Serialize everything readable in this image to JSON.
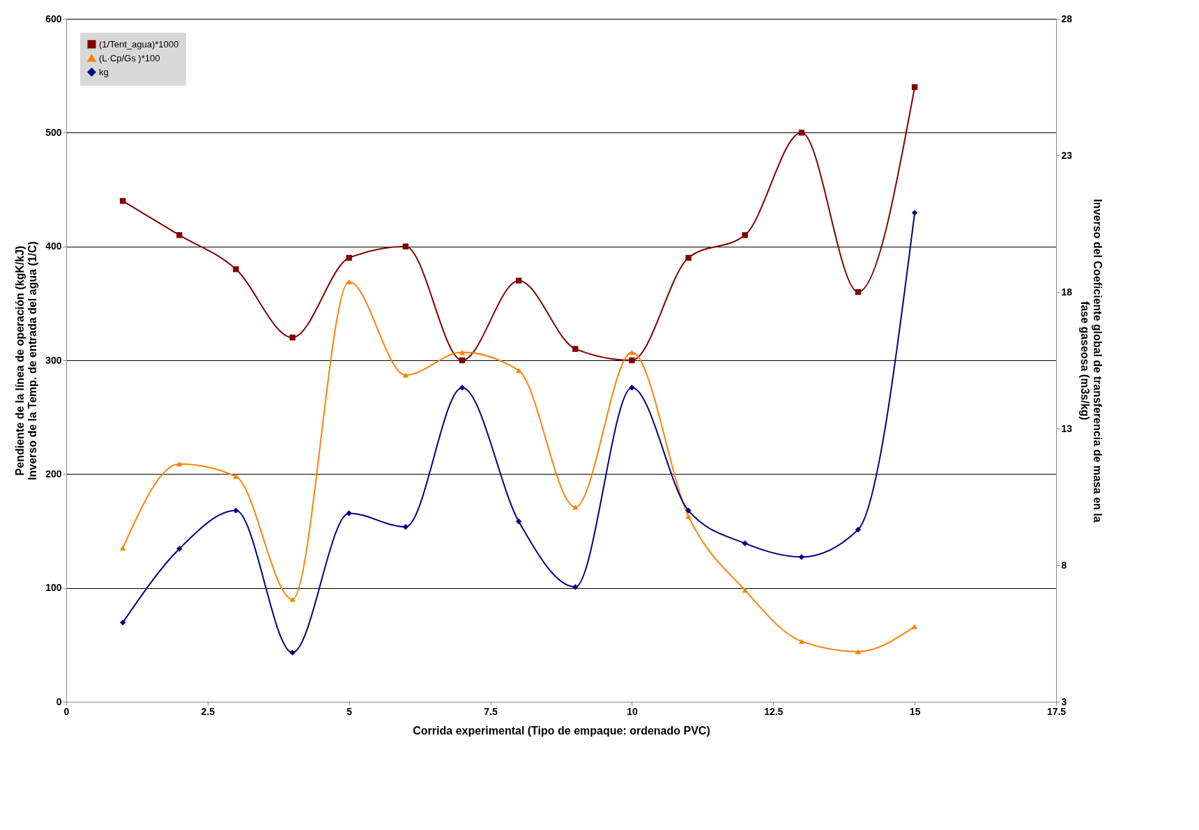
{
  "chart_data": {
    "type": "line",
    "xlabel": "Corrida experimental (Tipo de empaque: ordenado PVC)",
    "ylabel": "Pendiente de la línea de operación (kgK/kJ)\nInverso de la Temp. de entrada del agua (1/C)",
    "y2label": "Inverso del Coeficiente global de transferencia de masa en la\nfase gaseosa (m3s/kg)",
    "x": [
      1,
      2,
      3,
      4,
      5,
      6,
      7,
      8,
      9,
      10,
      11,
      12,
      13,
      14,
      15
    ],
    "series": [
      {
        "name": "(1/Tent_agua)*1000",
        "color": "#800000",
        "marker": "square",
        "values": [
          440,
          410,
          380,
          320,
          390,
          400,
          300,
          370,
          310,
          300,
          390,
          410,
          500,
          360,
          540
        ]
      },
      {
        "name": "(L·Cp/Gs )*100",
        "color": "#ff8000",
        "marker": "triangle",
        "values": [
          135,
          209,
          198,
          90,
          369,
          287,
          307,
          291,
          171,
          307,
          163,
          98,
          53,
          44,
          66
        ]
      },
      {
        "name": "kg",
        "color": "#000080",
        "marker": "diamond",
        "axis": "y2",
        "values": [
          5.9,
          8.6,
          10.0,
          4.8,
          9.9,
          9.4,
          14.5,
          9.6,
          7.2,
          14.5,
          10.0,
          8.8,
          8.3,
          9.3,
          20.9
        ]
      }
    ],
    "xlim": [
      0,
      17.5
    ],
    "xticks": [
      0,
      2.5,
      5,
      7.5,
      10,
      12.5,
      15,
      17.5
    ],
    "ylim": [
      0,
      600
    ],
    "yticks": [
      0,
      100,
      200,
      300,
      400,
      500,
      600
    ],
    "y2lim": [
      3,
      28
    ],
    "y2ticks": [
      3,
      8,
      13,
      18,
      23,
      28
    ],
    "grid": "y",
    "legend": "top left",
    "line_style": "solid"
  }
}
